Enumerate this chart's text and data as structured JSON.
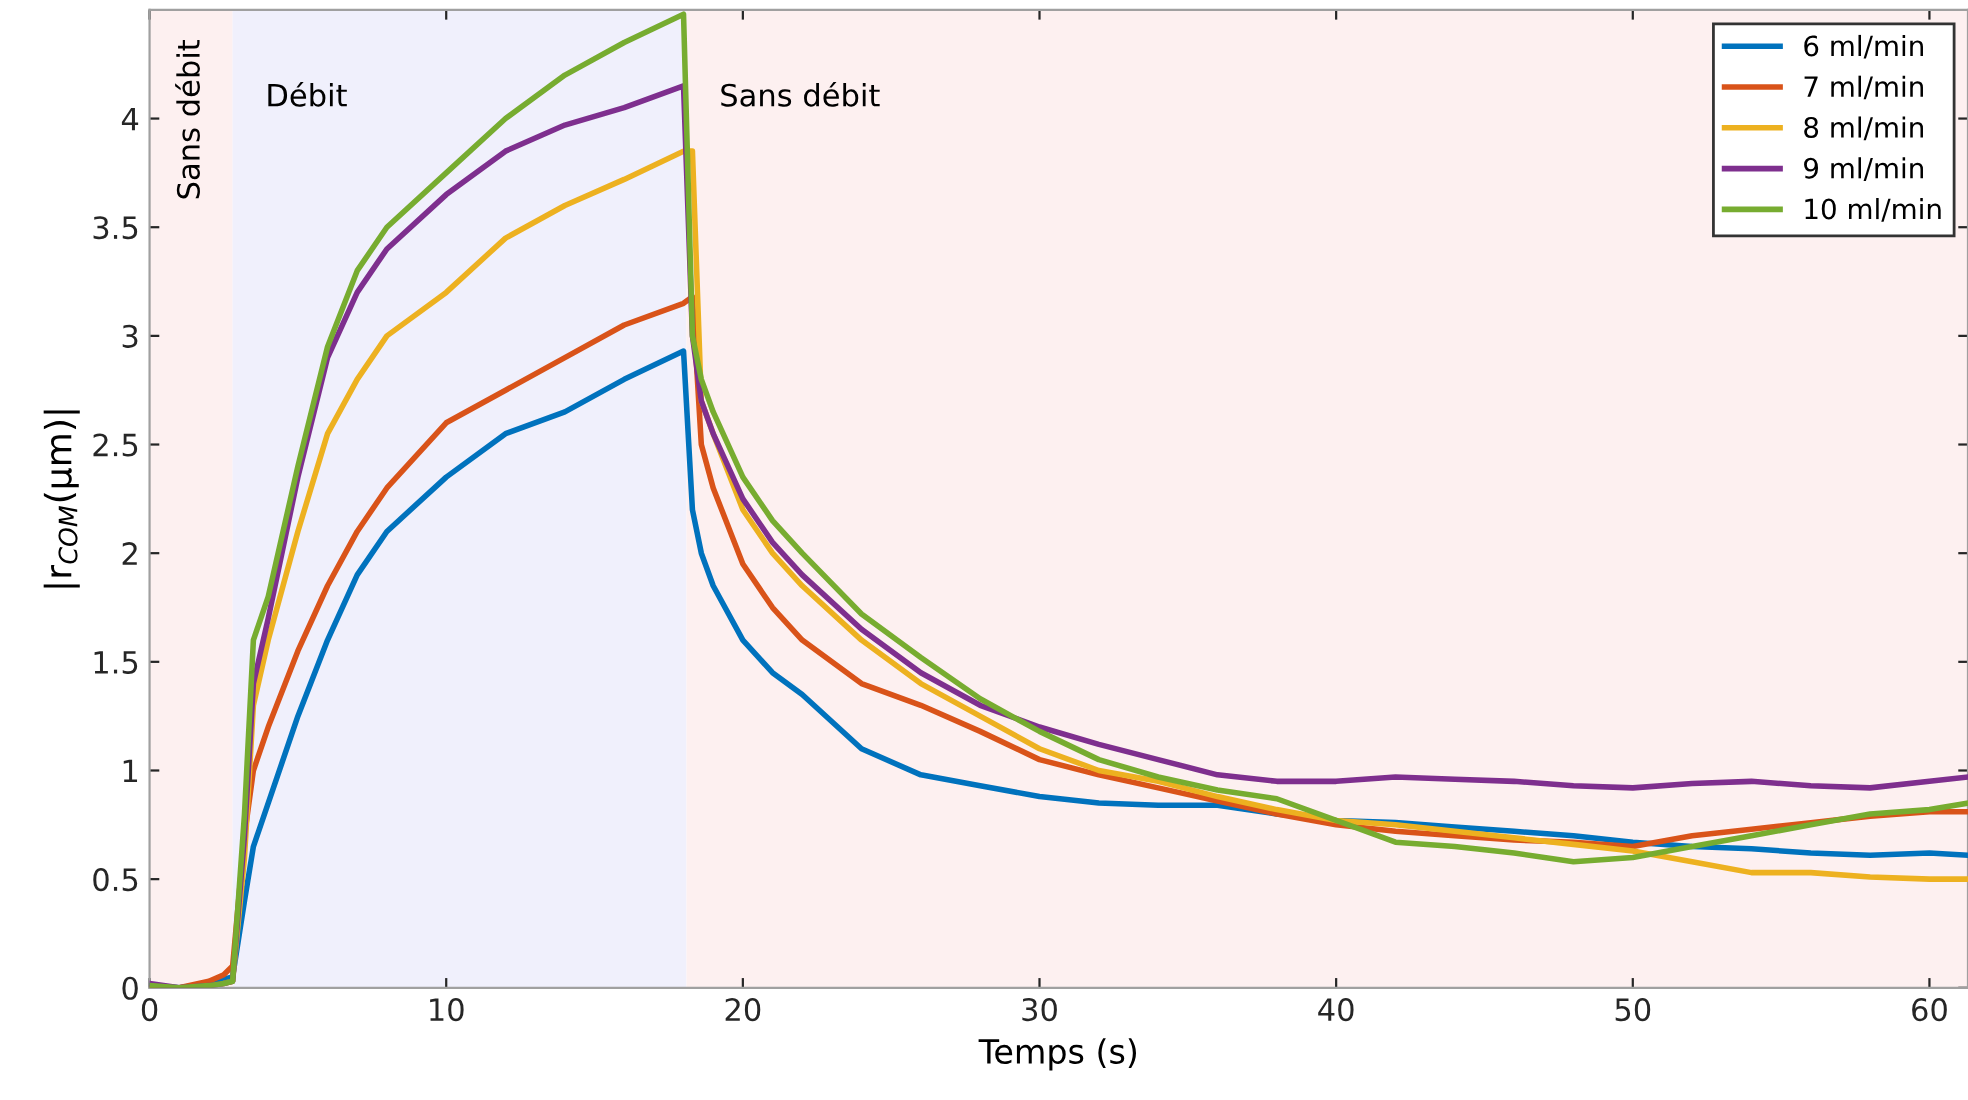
{
  "chart_data": {
    "type": "line",
    "xlabel": "Temps (s)",
    "ylabel": "|r$_{COM}$(μm)|",
    "x": [
      0,
      1,
      2,
      2.5,
      2.8,
      3.2,
      3.5,
      4,
      5,
      6,
      7,
      8,
      10,
      12,
      14,
      16,
      18,
      18.3,
      18.6,
      19,
      20,
      21,
      22,
      24,
      26,
      28,
      30,
      32,
      34,
      36,
      38,
      40,
      42,
      44,
      46,
      48,
      50,
      52,
      54,
      56,
      58,
      60,
      61.3
    ],
    "series": [
      {
        "name": "6 ml/min",
        "color": "#0072bd",
        "values": [
          0.01,
          0,
          0.02,
          0.04,
          0.05,
          0.4,
          0.65,
          0.85,
          1.25,
          1.6,
          1.9,
          2.1,
          2.35,
          2.55,
          2.65,
          2.8,
          2.93,
          2.2,
          2.0,
          1.85,
          1.6,
          1.45,
          1.35,
          1.1,
          0.98,
          0.93,
          0.88,
          0.85,
          0.84,
          0.84,
          0.8,
          0.77,
          0.76,
          0.74,
          0.72,
          0.7,
          0.67,
          0.65,
          0.64,
          0.62,
          0.61,
          0.62,
          0.61
        ]
      },
      {
        "name": "7 ml/min",
        "color": "#d95319",
        "values": [
          0,
          0,
          0.03,
          0.06,
          0.1,
          0.7,
          1.0,
          1.2,
          1.55,
          1.85,
          2.1,
          2.3,
          2.6,
          2.75,
          2.9,
          3.05,
          3.15,
          3.18,
          2.5,
          2.3,
          1.95,
          1.75,
          1.6,
          1.4,
          1.3,
          1.18,
          1.05,
          0.98,
          0.92,
          0.86,
          0.8,
          0.75,
          0.72,
          0.7,
          0.68,
          0.67,
          0.65,
          0.7,
          0.73,
          0.76,
          0.79,
          0.81,
          0.81
        ]
      },
      {
        "name": "8 ml/min",
        "color": "#edb120",
        "values": [
          null,
          null,
          null,
          0.02,
          0.03,
          0.6,
          1.3,
          1.6,
          2.1,
          2.55,
          2.8,
          3.0,
          3.2,
          3.45,
          3.6,
          3.72,
          3.85,
          3.85,
          2.7,
          2.55,
          2.2,
          2.0,
          1.85,
          1.6,
          1.4,
          1.25,
          1.1,
          1.0,
          0.95,
          0.88,
          0.82,
          0.77,
          0.75,
          0.72,
          0.69,
          0.66,
          0.63,
          0.58,
          0.53,
          0.53,
          0.51,
          0.5,
          0.5
        ]
      },
      {
        "name": "9 ml/min",
        "color": "#7e2f8e",
        "values": [
          0.02,
          0,
          0.01,
          0.02,
          0.03,
          0.7,
          1.4,
          1.7,
          2.35,
          2.9,
          3.2,
          3.4,
          3.65,
          3.85,
          3.97,
          4.05,
          4.15,
          3.0,
          2.7,
          2.55,
          2.25,
          2.05,
          1.9,
          1.65,
          1.45,
          1.3,
          1.2,
          1.12,
          1.05,
          0.98,
          0.95,
          0.95,
          0.97,
          0.96,
          0.95,
          0.93,
          0.92,
          0.94,
          0.95,
          0.93,
          0.92,
          0.95,
          0.97
        ]
      },
      {
        "name": "10 ml/min",
        "color": "#77ac30",
        "values": [
          0.01,
          0,
          0.01,
          0.02,
          0.03,
          0.8,
          1.6,
          1.8,
          2.4,
          2.95,
          3.3,
          3.5,
          3.75,
          4.0,
          4.2,
          4.35,
          4.48,
          3.0,
          2.8,
          2.65,
          2.35,
          2.15,
          2.0,
          1.72,
          1.52,
          1.33,
          1.18,
          1.05,
          0.97,
          0.91,
          0.87,
          0.77,
          0.67,
          0.65,
          0.62,
          0.58,
          0.6,
          0.65,
          0.7,
          0.75,
          0.8,
          0.82,
          0.85
        ]
      }
    ],
    "bands": [
      {
        "axis": "x",
        "from": 0,
        "to": 2.8,
        "label": "Sans débit",
        "color": "#fdf0f0"
      },
      {
        "axis": "x",
        "from": 2.8,
        "to": 18.1,
        "label": "Débit",
        "color": "#f0f0fc"
      },
      {
        "axis": "x",
        "from": 18.1,
        "to": 61.3,
        "label": "Sans débit",
        "color": "#fdf0f0"
      }
    ],
    "xlim": [
      0,
      61.3
    ],
    "xticks": [
      0,
      10,
      20,
      30,
      40,
      50,
      60
    ],
    "ylim": [
      0,
      4.5
    ],
    "yticks": [
      0,
      0.5,
      1,
      1.5,
      2,
      2.5,
      3,
      3.5,
      4
    ],
    "grid": false,
    "legend": "top right",
    "line_style": "solid",
    "marker": "none"
  }
}
